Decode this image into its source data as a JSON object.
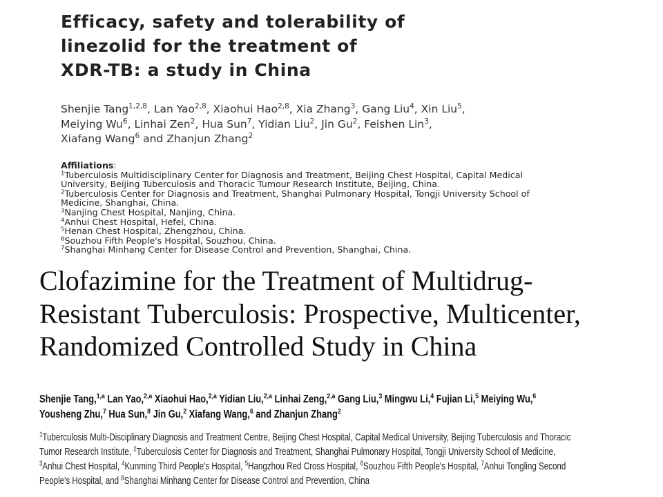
{
  "paper1": {
    "title_lines": [
      "Efficacy, safety and tolerability of",
      "linezolid for the treatment of",
      "XDR-TB: a study in China"
    ],
    "author_lines": [
      [
        {
          "name": "Shenjie Tang",
          "sup": "1,2,8",
          "sep": ", "
        },
        {
          "name": "Lan Yao",
          "sup": "2,8",
          "sep": ", "
        },
        {
          "name": "Xiaohui Hao",
          "sup": "2,8",
          "sep": ", "
        },
        {
          "name": "Xia Zhang",
          "sup": "3",
          "sep": ", "
        },
        {
          "name": "Gang Liu",
          "sup": "4",
          "sep": ", "
        },
        {
          "name": "Xin Liu",
          "sup": "5",
          "sep": ","
        }
      ],
      [
        {
          "name": "Meiying Wu",
          "sup": "6",
          "sep": ", "
        },
        {
          "name": "Linhai Zen",
          "sup": "2",
          "sep": ", "
        },
        {
          "name": "Hua Sun",
          "sup": "7",
          "sep": ", "
        },
        {
          "name": "Yidian Liu",
          "sup": "2",
          "sep": ", "
        },
        {
          "name": "Jin Gu",
          "sup": "2",
          "sep": ", "
        },
        {
          "name": "Feishen Lin",
          "sup": "3",
          "sep": ","
        }
      ],
      [
        {
          "name": "Xiafang Wang",
          "sup": "6",
          "sep": " and "
        },
        {
          "name": "Zhanjun Zhang",
          "sup": "2",
          "sep": ""
        }
      ]
    ],
    "affiliations_label": "Affiliations",
    "affiliation_lines": [
      {
        "sup": "1",
        "text": "Tuberculosis Multidisciplinary Center for Diagnosis and Treatment, Beijing Chest Hospital, Capital Medical"
      },
      {
        "sup": "",
        "text": "University, Beijing Tuberculosis and Thoracic Tumour Research Institute, Beijing, China."
      },
      {
        "sup": "2",
        "text": "Tuberculosis Center for Diagnosis and Treatment, Shanghai Pulmonary Hospital, Tongji University School of"
      },
      {
        "sup": "",
        "text": "Medicine, Shanghai, China."
      },
      {
        "sup": "3",
        "text": "Nanjing Chest Hospital, Nanjing, China."
      },
      {
        "sup": "4",
        "text": "Anhui Chest Hospital, Hefei, China."
      },
      {
        "sup": "5",
        "text": "Henan Chest Hospital, Zhengzhou, China."
      },
      {
        "sup": "6",
        "text": "Souzhou Fifth People's Hospital, Souzhou, China."
      },
      {
        "sup": "7",
        "text": "Shanghai Minhang Center for Disease Control and Prevention, Shanghai, China."
      }
    ]
  },
  "paper2": {
    "title_lines": [
      "Clofazimine for the Treatment of Multidrug-",
      "Resistant Tuberculosis: Prospective, Multicenter,",
      "Randomized Controlled Study in China"
    ],
    "author_lines": [
      [
        {
          "name": "Shenjie Tang,",
          "sup": "1,a",
          "sep": " "
        },
        {
          "name": "Lan Yao,",
          "sup": "2,a",
          "sep": " "
        },
        {
          "name": "Xiaohui Hao,",
          "sup": "2,a",
          "sep": " "
        },
        {
          "name": "Yidian Liu,",
          "sup": "2,a",
          "sep": " "
        },
        {
          "name": "Linhai Zeng,",
          "sup": "2,a",
          "sep": " "
        },
        {
          "name": "Gang Liu,",
          "sup": "3",
          "sep": " "
        },
        {
          "name": "Mingwu Li,",
          "sup": "4",
          "sep": " "
        },
        {
          "name": "Fujian Li,",
          "sup": "5",
          "sep": " "
        },
        {
          "name": "Meiying Wu,",
          "sup": "6",
          "sep": ""
        }
      ],
      [
        {
          "name": "Yousheng Zhu,",
          "sup": "7",
          "sep": " "
        },
        {
          "name": "Hua Sun,",
          "sup": "8",
          "sep": " "
        },
        {
          "name": "Jin Gu,",
          "sup": "2",
          "sep": " "
        },
        {
          "name": "Xiafang Wang,",
          "sup": "6",
          "sep": " "
        },
        {
          "name": "and Zhanjun Zhang",
          "sup": "2",
          "sep": ""
        }
      ]
    ],
    "affiliation_lines": [
      [
        {
          "sup": "1",
          "text": "Tuberculosis Multi-Disciplinary Diagnosis and Treatment Centre, Beijing Chest Hospital, Capital Medical University, Beijing Tuberculosis and Thoracic"
        }
      ],
      [
        {
          "sup": "",
          "text": "Tumor Research Institute, "
        },
        {
          "sup": "2",
          "text": "Tuberculosis Center for Diagnosis and Treatment, Shanghai Pulmonary Hospital, Tongji University School of Medicine,"
        }
      ],
      [
        {
          "sup": "3",
          "text": "Anhui Chest Hospital, "
        },
        {
          "sup": "4",
          "text": "Kunming Third People's Hospital, "
        },
        {
          "sup": "5",
          "text": "Hangzhou Red Cross Hospital, "
        },
        {
          "sup": "6",
          "text": "Souzhou Fifth People's Hospital, "
        },
        {
          "sup": "7",
          "text": "Anhui Tongling Second"
        }
      ],
      [
        {
          "sup": "",
          "text": "People's Hospital, and "
        },
        {
          "sup": "8",
          "text": "Shanghai Minhang Center for Disease Control and Prevention, China"
        }
      ]
    ]
  }
}
